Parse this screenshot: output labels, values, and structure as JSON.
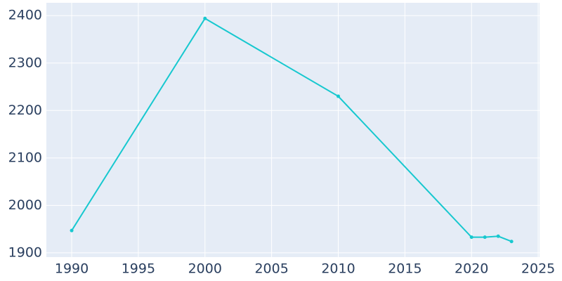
{
  "chart_data": {
    "type": "line",
    "x": [
      1990,
      2000,
      2010,
      2020,
      2021,
      2022,
      2023
    ],
    "series": [
      {
        "color": "#17c8cf",
        "values": [
          1947,
          2394,
          2230,
          1933,
          1933,
          1935,
          1924
        ]
      }
    ],
    "xlim": [
      1988.1,
      2025.1
    ],
    "xticks": [
      1990,
      1995,
      2000,
      2005,
      2010,
      2015,
      2020,
      2025
    ],
    "ylim": [
      1891,
      2427
    ],
    "yticks": [
      1900,
      2000,
      2100,
      2200,
      2300,
      2400
    ],
    "grid": true
  }
}
